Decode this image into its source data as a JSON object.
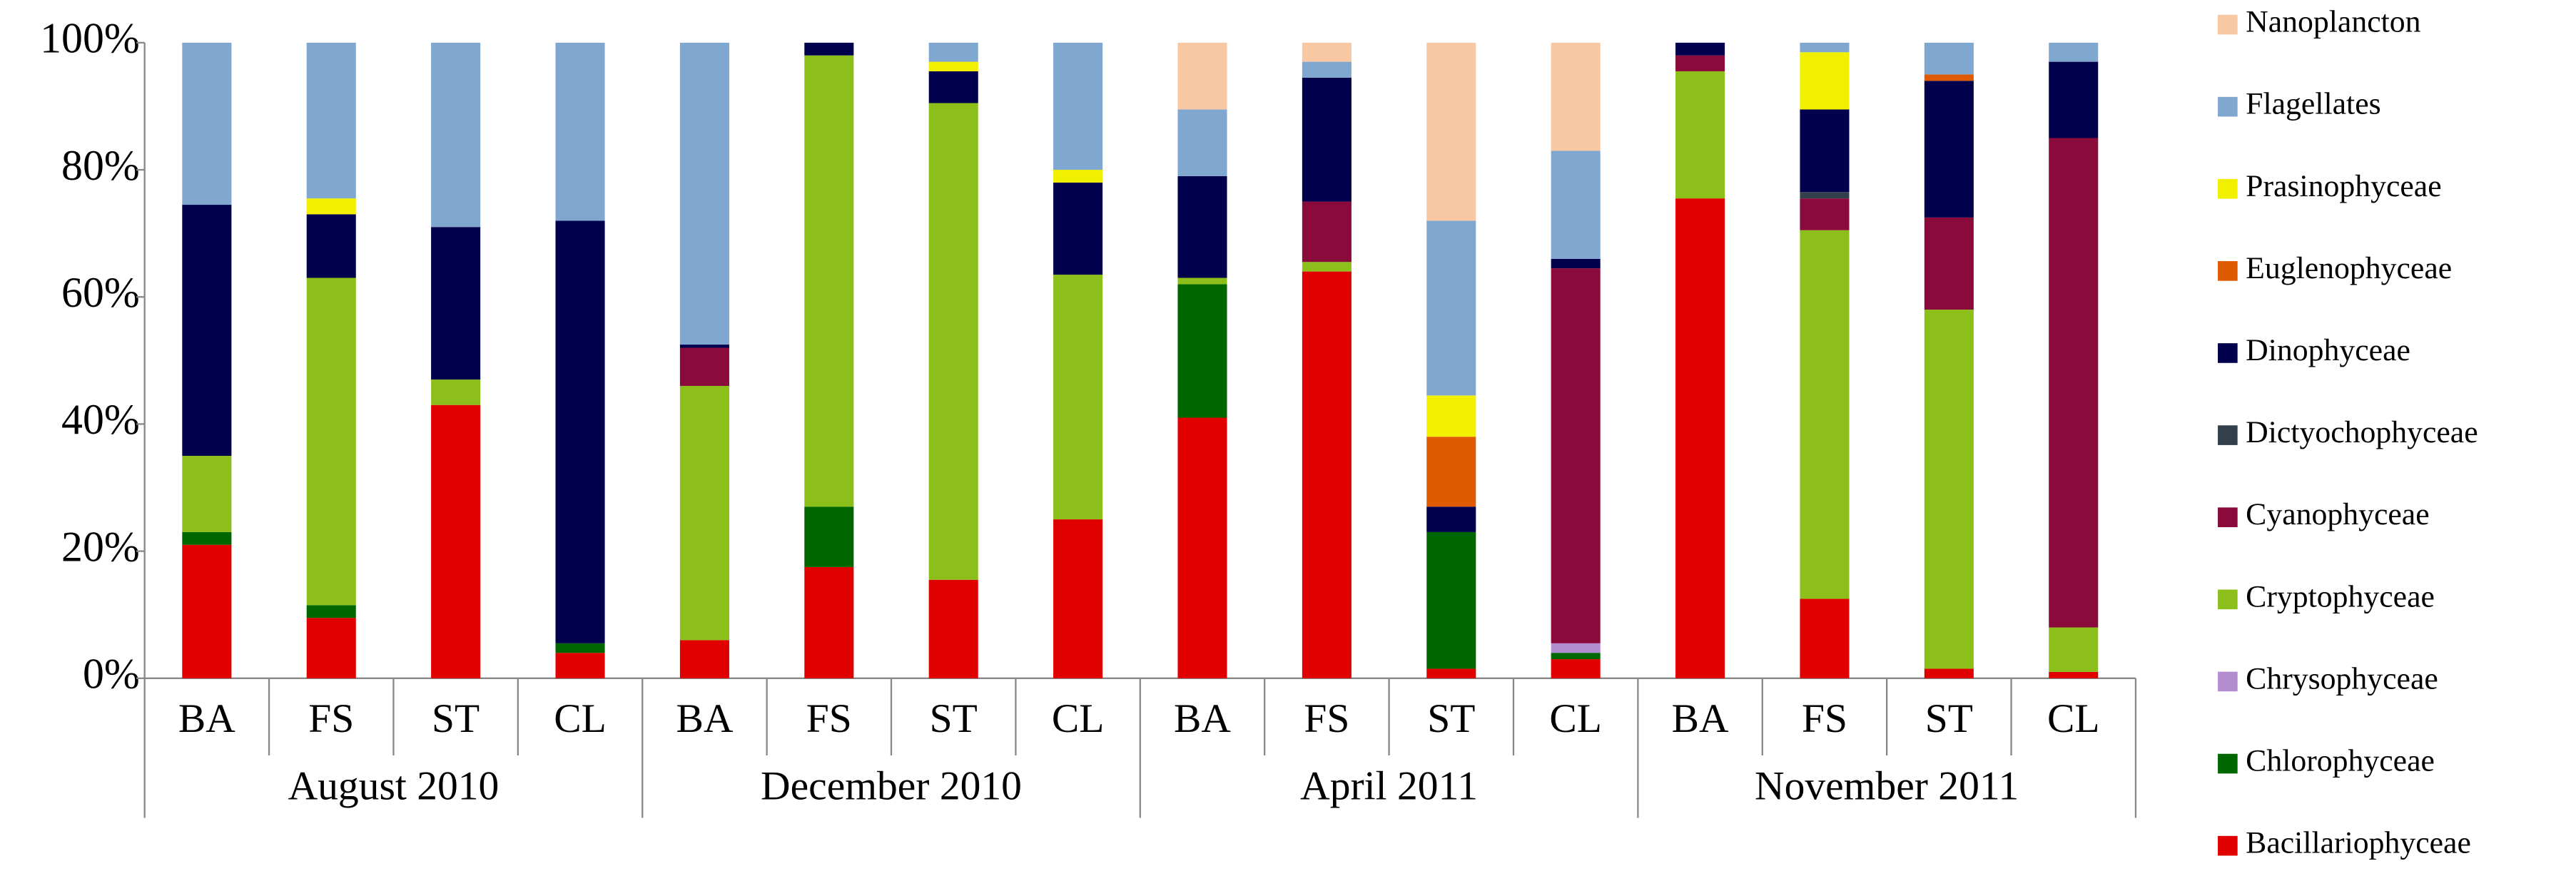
{
  "chart_data": {
    "type": "stacked_bar",
    "categories": [
      "BA",
      "FS",
      "ST",
      "CL",
      "BA",
      "FS",
      "ST",
      "CL",
      "BA",
      "FS",
      "ST",
      "CL",
      "BA",
      "FS",
      "ST",
      "CL"
    ],
    "groups": [
      "August 2010",
      "December 2010",
      "April 2011",
      "November 2011"
    ],
    "ylim": [
      0,
      100
    ],
    "yticks": [
      {
        "value": 0,
        "label": "0%"
      },
      {
        "value": 20,
        "label": "20%"
      },
      {
        "value": 40,
        "label": "40%"
      },
      {
        "value": 60,
        "label": "60%"
      },
      {
        "value": 80,
        "label": "80%"
      },
      {
        "value": 100,
        "label": "100%"
      }
    ],
    "series": [
      {
        "name": "Bacillariophyceae",
        "color": "#e00000",
        "values": [
          21,
          9.5,
          43,
          4,
          6,
          17.5,
          15.5,
          25,
          41,
          64,
          1.5,
          3,
          75.5,
          12.5,
          1.5,
          1
        ]
      },
      {
        "name": "Chlorophyceae",
        "color": "#006600",
        "values": [
          2,
          2,
          0,
          1.5,
          0,
          9.5,
          0,
          0,
          21,
          0,
          21.5,
          1,
          0,
          0,
          0,
          0
        ]
      },
      {
        "name": "Chrysophyceae",
        "color": "#b48cd0",
        "values": [
          0,
          0,
          0,
          0,
          0,
          0,
          0,
          0,
          0,
          0,
          0,
          1.5,
          0,
          0,
          0,
          0
        ]
      },
      {
        "name": "Cryptophyceae",
        "color": "#8dbf1a",
        "values": [
          12,
          51.5,
          4,
          0,
          40,
          71,
          75,
          38.5,
          1,
          1.5,
          0,
          0,
          20,
          58,
          56.5,
          7
        ]
      },
      {
        "name": "Cyanophyceae",
        "color": "#8b0a3c",
        "values": [
          0,
          0,
          0,
          0,
          6,
          0,
          0,
          0,
          0,
          9.5,
          0,
          59,
          2.5,
          5,
          14.5,
          77
        ]
      },
      {
        "name": "Dictyochophyceae",
        "color": "#333f4a",
        "values": [
          0,
          0,
          0,
          0,
          0,
          0,
          0,
          0,
          0,
          0,
          0,
          0,
          0,
          1,
          0,
          0
        ]
      },
      {
        "name": "Dinophyceae",
        "color": "#00004d",
        "values": [
          39.5,
          10,
          24,
          66.5,
          0.5,
          2,
          5,
          14.5,
          16,
          19.5,
          4,
          1.5,
          2,
          13,
          21.5,
          12
        ]
      },
      {
        "name": "Euglenophyceae",
        "color": "#e05a00",
        "values": [
          0,
          0,
          0,
          0,
          0,
          0,
          0,
          0,
          0,
          0,
          11,
          0,
          0,
          0,
          1,
          0
        ]
      },
      {
        "name": "Prasinophyceae",
        "color": "#f0f000",
        "values": [
          0,
          2.5,
          0,
          0,
          0,
          0,
          1.5,
          2,
          0,
          0,
          6.5,
          0,
          0,
          9,
          0,
          0
        ]
      },
      {
        "name": "Flagellates",
        "color": "#7fa7d0",
        "values": [
          25.5,
          24.5,
          29,
          28,
          47.5,
          0,
          3,
          20,
          10.5,
          2.5,
          27.5,
          17,
          0,
          1.5,
          5,
          3
        ]
      },
      {
        "name": "Nanoplancton",
        "color": "#f7c8a2",
        "values": [
          0,
          0,
          0,
          0,
          0,
          0,
          0,
          0,
          10.5,
          3,
          28,
          17,
          0,
          0,
          0,
          0
        ]
      }
    ]
  }
}
